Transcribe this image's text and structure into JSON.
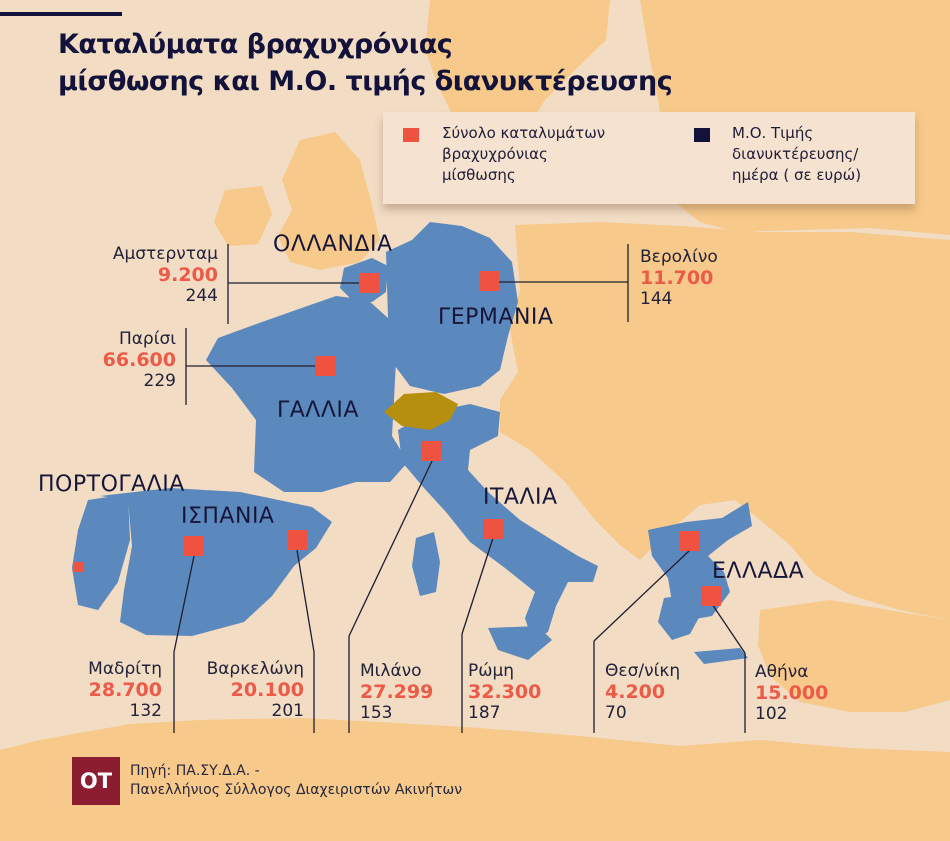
{
  "title": {
    "line1": "Καταλύματα βραχυχρόνιας",
    "line2": "μίσθωσης και Μ.Ο. τιμής διανυκτέρευσης"
  },
  "legend": {
    "total": {
      "line1": "Σύνολο καταλυμάτων",
      "line2": "βραχυχρόνιας",
      "line3": "μίσθωσης",
      "color": "#ef5240"
    },
    "price": {
      "line1": "Μ.Ο. Τιμής",
      "line2": "διανυκτέρευσης/",
      "line3": "ημέρα ( σε ευρώ)",
      "color": "#12123a"
    }
  },
  "countries": {
    "netherlands": "ΟΛΛΑΝΔΙΑ",
    "germany": "ΓΕΡΜΑΝΙΑ",
    "france": "ΓΑΛΛΙΑ",
    "portugal": "ΠΟΡΤΟΓΑΛΙΑ",
    "spain": "ΙΣΠΑΝΙΑ",
    "italy": "ΙΤΑΛΙΑ",
    "greece": "ΕΛΛΑΔΑ"
  },
  "cities": {
    "amsterdam": {
      "name": "Αμστερνταμ",
      "total": "9.200",
      "price": "244"
    },
    "berlin": {
      "name": "Βερολίνο",
      "total": "11.700",
      "price": "144"
    },
    "paris": {
      "name": "Παρίσι",
      "total": "66.600",
      "price": "229"
    },
    "madrid": {
      "name": "Μαδρίτη",
      "total": "28.700",
      "price": "132"
    },
    "barcelona": {
      "name": "Βαρκελώνη",
      "total": "20.100",
      "price": "201"
    },
    "milan": {
      "name": "Μιλάνο",
      "total": "27.299",
      "price": "153"
    },
    "rome": {
      "name": "Ρώμη",
      "total": "32.300",
      "price": "187"
    },
    "thessaloniki": {
      "name": "Θεσ/νίκη",
      "total": "4.200",
      "price": "70"
    },
    "athens": {
      "name": "Αθήνα",
      "total": "15.000",
      "price": "102"
    }
  },
  "logo": "ΟΤ",
  "source": {
    "line1": "Πηγή: ΠΑ.ΣΥ.Δ.Α. -",
    "line2": "Πανελλήνιος Σύλλογος Διαχειριστών Ακινήτων"
  },
  "colors": {
    "sea": "#f2dcc4",
    "other_land": "#f7c98a",
    "featured_country": "#5b88bd",
    "switzerland": "#b68f0e",
    "marker": "#ef5240",
    "value_text": "#ec5a48",
    "title_text": "#12123a"
  }
}
